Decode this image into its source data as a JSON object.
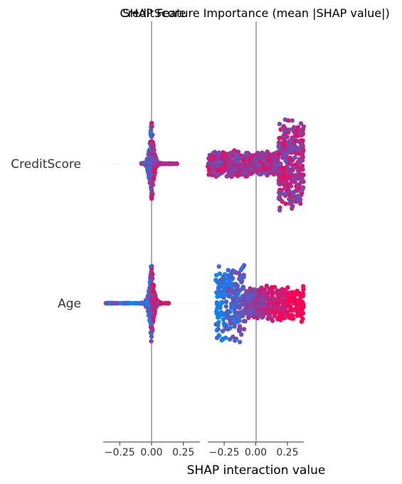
{
  "chart_data": {
    "type": "scatter",
    "subtype": "shap-interaction-beeswarm",
    "titles": [
      "CreditScore",
      "SHAP Feature Importance (mean |SHAP value|)"
    ],
    "features": [
      "CreditScore",
      "Age"
    ],
    "xlabel": "SHAP interaction value",
    "panels": [
      {
        "name": "CreditScore",
        "xlim": [
          -0.38,
          0.38
        ],
        "xticks": [
          -0.25,
          0.0,
          0.25
        ],
        "xtick_labels": [
          "−0.25",
          "0.00",
          "0.25"
        ],
        "rows": {
          "CreditScore": {
            "center": 0.0,
            "spread": 0.02,
            "extent": [
              -0.08,
              0.22
            ],
            "n": 260,
            "height": 0.85
          },
          "Age": {
            "center": 0.0,
            "spread": 0.025,
            "extent": [
              -0.36,
              0.14
            ],
            "n": 260,
            "height": 0.85
          }
        }
      },
      {
        "name": "SHAP Feature Importance (mean |SHAP value|)",
        "xlim": [
          -0.38,
          0.38
        ],
        "xticks": [
          -0.25,
          0.0,
          0.25
        ],
        "xtick_labels": [
          "−0.25",
          "0.00",
          "0.25"
        ],
        "rows": {
          "CreditScore": {
            "segments": [
              [
                -0.38,
                -0.05,
                0.25
              ],
              [
                -0.05,
                0.18,
                0.22
              ],
              [
                0.18,
                0.38,
                0.85
              ]
            ],
            "n": 900
          },
          "Age": {
            "segments": [
              [
                -0.32,
                -0.08,
                0.75
              ],
              [
                -0.08,
                0.05,
                0.3
              ],
              [
                0.05,
                0.38,
                0.35
              ]
            ],
            "n": 700
          }
        }
      }
    ],
    "colors": {
      "low": "#008afb",
      "high": "#ff0052",
      "zero_line": "#999999",
      "gridline": "#cccccc"
    },
    "grid": false,
    "legend": "none"
  }
}
